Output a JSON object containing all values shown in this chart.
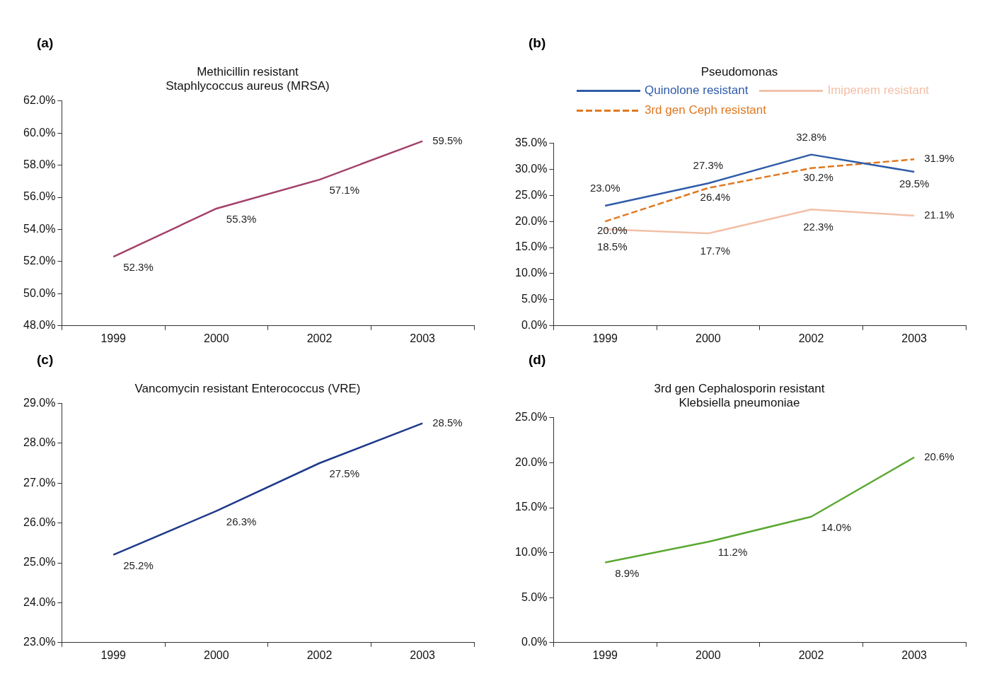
{
  "chart_data": [
    {
      "type": "line",
      "title": [
        "Methicillin resistant",
        "Staphlycoccus aureus (MRSA)"
      ],
      "annotations": [
        "(a)"
      ],
      "categories": [
        "1999",
        "2000",
        "2002",
        "2003"
      ],
      "series": [
        {
          "color": "#a3416b",
          "values": [
            52.3,
            55.3,
            57.1,
            59.5
          ],
          "value_labels": [
            "52.3%",
            "55.3%",
            "57.1%",
            "59.5%"
          ]
        }
      ],
      "ylim": [
        48,
        62
      ],
      "yticks": [
        {
          "value": 48,
          "label": "48.0%"
        },
        {
          "value": 50,
          "label": "50.0%"
        },
        {
          "value": 52,
          "label": "52.0%"
        },
        {
          "value": 54,
          "label": "54.0%"
        },
        {
          "value": 56,
          "label": "56.0%"
        },
        {
          "value": 58,
          "label": "58.0%"
        },
        {
          "value": 60,
          "label": "60.0%"
        },
        {
          "value": 62,
          "label": "62.0%"
        }
      ],
      "grid": false,
      "legend": false,
      "marker": "none"
    },
    {
      "type": "line",
      "title": "Pseudomonas",
      "annotations": [
        "(b)"
      ],
      "categories": [
        "1999",
        "2000",
        "2002",
        "2003"
      ],
      "series": [
        {
          "name": "Quinolone resistant",
          "color": "#2f5ca8",
          "line_style": "solid",
          "values": [
            23.0,
            27.3,
            32.8,
            29.5
          ],
          "value_labels": [
            "23.0%",
            "27.3%",
            "32.8%",
            "29.5%"
          ]
        },
        {
          "name": "Imipenem resistant",
          "color": "#f2c0a8",
          "line_style": "solid",
          "values": [
            18.5,
            17.7,
            22.3,
            21.1
          ],
          "value_labels": [
            "18.5%",
            "17.7%",
            "22.3%",
            "21.1%"
          ]
        },
        {
          "name": "3rd gen Ceph resistant",
          "color": "#e07820",
          "line_style": "dashed",
          "values": [
            20.0,
            26.4,
            30.2,
            31.9
          ],
          "value_labels": [
            "20.0%",
            "26.4%",
            "30.2%",
            "31.9%"
          ]
        }
      ],
      "ylim": [
        0,
        35
      ],
      "yticks": [
        {
          "value": 0,
          "label": "0.0%"
        },
        {
          "value": 5,
          "label": "5.0%"
        },
        {
          "value": 10,
          "label": "10.0%"
        },
        {
          "value": 15,
          "label": "15.0%"
        },
        {
          "value": 20,
          "label": "20.0%"
        },
        {
          "value": 25,
          "label": "25.0%"
        },
        {
          "value": 30,
          "label": "30.0%"
        },
        {
          "value": 35,
          "label": "35.0%"
        }
      ],
      "grid": false,
      "legend": "top",
      "marker": "none"
    },
    {
      "type": "line",
      "title": "Vancomycin resistant Enterococcus (VRE)",
      "annotations": [
        "(c)"
      ],
      "categories": [
        "1999",
        "2000",
        "2002",
        "2003"
      ],
      "series": [
        {
          "color": "#1f3a8a",
          "values": [
            25.2,
            26.3,
            27.5,
            28.5
          ],
          "value_labels": [
            "25.2%",
            "26.3%",
            "27.5%",
            "28.5%"
          ]
        }
      ],
      "ylim": [
        23,
        29
      ],
      "yticks": [
        {
          "value": 23,
          "label": "23.0%"
        },
        {
          "value": 24,
          "label": "24.0%"
        },
        {
          "value": 25,
          "label": "25.0%"
        },
        {
          "value": 26,
          "label": "26.0%"
        },
        {
          "value": 27,
          "label": "27.0%"
        },
        {
          "value": 28,
          "label": "28.0%"
        },
        {
          "value": 29,
          "label": "29.0%"
        }
      ],
      "grid": false,
      "legend": false,
      "marker": "none"
    },
    {
      "type": "line",
      "title": [
        "3rd gen Cephalosporin resistant",
        "Klebsiella pneumoniae"
      ],
      "annotations": [
        "(d)"
      ],
      "categories": [
        "1999",
        "2000",
        "2002",
        "2003"
      ],
      "series": [
        {
          "color": "#5aa832",
          "values": [
            8.9,
            11.2,
            14.0,
            20.6
          ],
          "value_labels": [
            "8.9%",
            "11.2%",
            "14.0%",
            "20.6%"
          ]
        }
      ],
      "ylim": [
        0,
        25
      ],
      "yticks": [
        {
          "value": 0,
          "label": "0.0%"
        },
        {
          "value": 5,
          "label": "5.0%"
        },
        {
          "value": 10,
          "label": "10.0%"
        },
        {
          "value": 15,
          "label": "15.0%"
        },
        {
          "value": 20,
          "label": "20.0%"
        },
        {
          "value": 25,
          "label": "25.0%"
        }
      ],
      "grid": false,
      "legend": false,
      "marker": "none"
    }
  ]
}
